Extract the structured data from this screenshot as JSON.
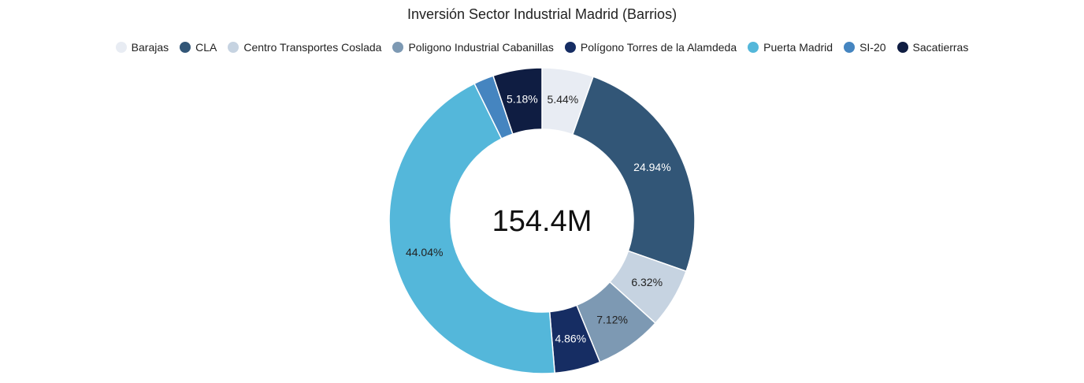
{
  "chart_data": {
    "type": "pie",
    "title": "Inversión Sector Industrial Madrid (Barrios)",
    "center_value": "154.4M",
    "legend_position": "top",
    "categories": [
      "Barajas",
      "CLA",
      "Centro Transportes Coslada",
      "Poligono Industrial Cabanillas",
      "Polígono Torres de la Alamdeda",
      "Puerta Madrid",
      "SI-20",
      "Sacatierras"
    ],
    "values": [
      5.44,
      24.94,
      6.32,
      7.12,
      4.86,
      44.04,
      2.12,
      5.18
    ],
    "labels": [
      "5.44%",
      "24.94%",
      "6.32%",
      "7.12%",
      "4.86%",
      "44.04%",
      "",
      "5.18%"
    ],
    "colors": [
      "#e8ecf3",
      "#325677",
      "#c6d3e1",
      "#7d99b3",
      "#162d63",
      "#54b7da",
      "#4585c0",
      "#0f1d42"
    ],
    "label_colors": [
      "#222222",
      "#ffffff",
      "#222222",
      "#222222",
      "#ffffff",
      "#222222",
      "#ffffff",
      "#ffffff"
    ],
    "unit": "%"
  }
}
